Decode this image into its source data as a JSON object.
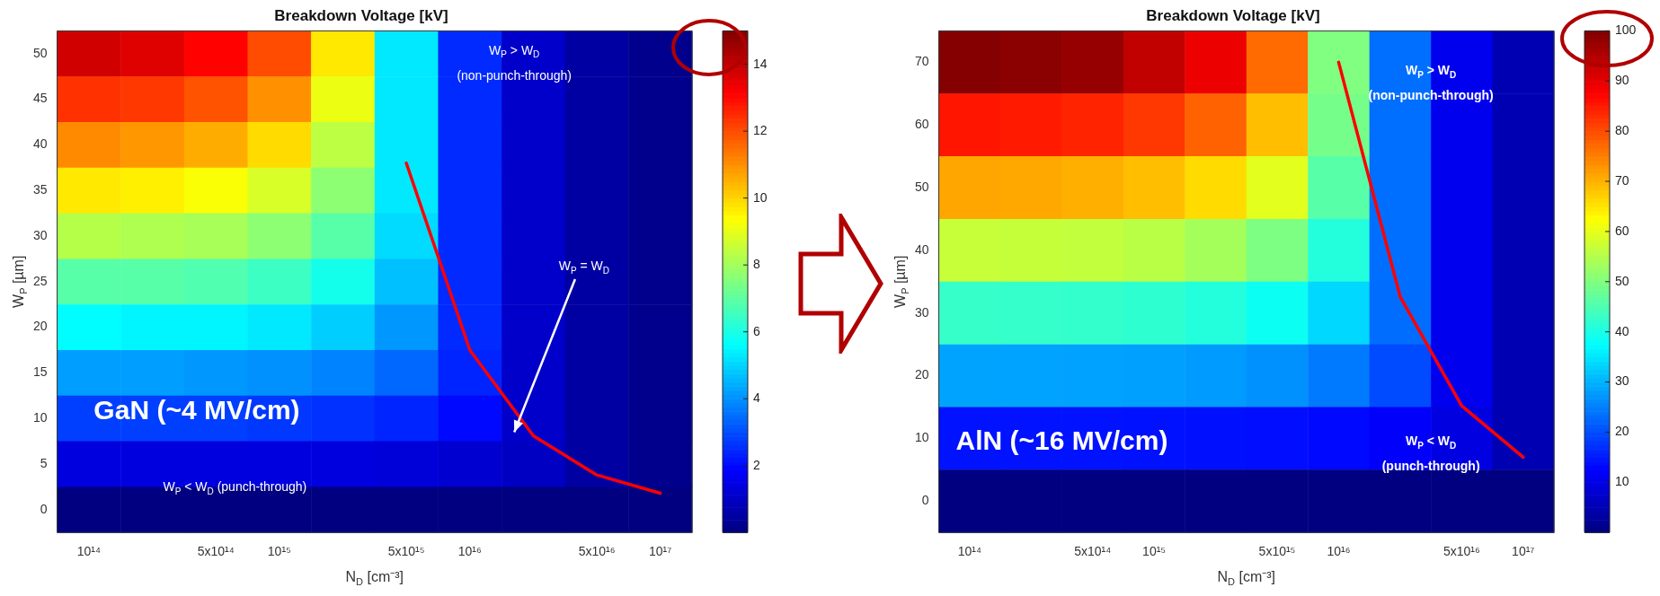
{
  "chart_data": [
    {
      "type": "heatmap",
      "title": "Breakdown Voltage [kV]",
      "xlabel": "N$_{D}$ [cm⁻³]",
      "ylabel": "W$_{P}$ [µm]",
      "categories": [
        "10¹⁴",
        null,
        "5x10¹⁴",
        "10¹⁵",
        null,
        "5x10¹⁵",
        "10¹⁶",
        null,
        "5x10¹⁶",
        "10¹⁷"
      ],
      "ylim": [
        -2.5,
        52.5
      ],
      "yticks": [
        0,
        5,
        10,
        15,
        20,
        25,
        30,
        35,
        40,
        45,
        50
      ],
      "cells": [
        [
          13.8,
          13.6,
          13.1,
          12.0,
          9.7,
          5.3,
          2.5,
          1.1,
          0.5,
          0.2
        ],
        [
          12.4,
          12.3,
          11.9,
          11.0,
          9.1,
          5.3,
          2.5,
          1.1,
          0.5,
          0.2
        ],
        [
          11.1,
          10.9,
          10.6,
          9.9,
          8.4,
          5.3,
          2.5,
          1.1,
          0.5,
          0.2
        ],
        [
          9.7,
          9.6,
          9.3,
          8.8,
          7.7,
          5.3,
          2.5,
          1.1,
          0.5,
          0.2
        ],
        [
          8.3,
          8.2,
          8.1,
          7.7,
          6.9,
          5.1,
          2.5,
          1.1,
          0.5,
          0.2
        ],
        [
          6.9,
          6.9,
          6.8,
          6.5,
          5.9,
          4.7,
          2.5,
          1.1,
          0.5,
          0.2
        ],
        [
          5.6,
          5.5,
          5.5,
          5.3,
          4.9,
          4.1,
          2.5,
          1.1,
          0.5,
          0.2
        ],
        [
          4.2,
          4.2,
          4.1,
          4.0,
          3.8,
          3.4,
          2.4,
          1.1,
          0.5,
          0.2
        ],
        [
          2.8,
          2.8,
          2.8,
          2.7,
          2.6,
          2.4,
          2.0,
          1.1,
          0.5,
          0.2
        ],
        [
          1.4,
          1.4,
          1.4,
          1.4,
          1.4,
          1.3,
          1.2,
          1.0,
          0.5,
          0.2
        ],
        [
          0,
          0,
          0,
          0,
          0,
          0,
          0,
          0,
          0,
          0
        ]
      ],
      "clim": [
        0,
        15
      ],
      "cticks": [
        2,
        4,
        6,
        8,
        10,
        12,
        14
      ],
      "series": [
        {
          "type": "line",
          "color": "#ff0000",
          "values": [
            null,
            null,
            null,
            null,
            null,
            38,
            17.5,
            8.1,
            3.8,
            1.8
          ]
        }
      ],
      "annotations": [
        "W$_{P}$ > W$_{D}$",
        "(non-punch-through)",
        "W$_{P}$ = W$_{D}$",
        "W$_{P}$ < W$_{D}$ (punch-through)",
        "GaN (~4 MV/cm)"
      ]
    },
    {
      "type": "heatmap",
      "title": "Breakdown Voltage [kV]",
      "xlabel": "N$_{D}$ [cm⁻³]",
      "ylabel": "W$_{P}$ [µm]",
      "categories": [
        "10¹⁴",
        null,
        "5x10¹⁴",
        "10¹⁵",
        null,
        "5x10¹⁵",
        "10¹⁶",
        null,
        "5x10¹⁶",
        "10¹⁷"
      ],
      "ylim": [
        -5,
        75
      ],
      "yticks": [
        0,
        10,
        20,
        30,
        40,
        50,
        60,
        70
      ],
      "cells": [
        [
          99.5,
          98.9,
          97.7,
          93.6,
          89.3,
          77.0,
          50.0,
          23.3,
          10.9,
          5.0
        ],
        [
          85.4,
          85.0,
          84.1,
          82.1,
          77.9,
          68.9,
          49.0,
          23.3,
          10.9,
          5.0
        ],
        [
          71.2,
          71.0,
          70.3,
          68.9,
          66.0,
          59.7,
          46.0,
          23.3,
          10.9,
          5.0
        ],
        [
          57.0,
          56.8,
          56.5,
          55.6,
          53.7,
          49.7,
          40.9,
          23.3,
          10.9,
          5.0
        ],
        [
          42.8,
          42.7,
          42.5,
          42.0,
          40.9,
          38.7,
          33.7,
          23.2,
          10.9,
          5.0
        ],
        [
          28.6,
          28.5,
          28.4,
          28.2,
          27.7,
          26.7,
          24.5,
          19.8,
          10.9,
          5.0
        ],
        [
          14.3,
          14.3,
          14.3,
          14.2,
          14.1,
          13.8,
          13.3,
          12.1,
          9.6,
          5.0
        ],
        [
          0,
          0,
          0,
          0,
          0,
          0,
          0,
          0,
          0,
          0
        ]
      ],
      "clim": [
        0,
        100
      ],
      "cticks": [
        10,
        20,
        30,
        40,
        50,
        60,
        70,
        80,
        90,
        100
      ],
      "series": [
        {
          "type": "line",
          "color": "#ff0000",
          "values": [
            null,
            null,
            null,
            null,
            null,
            null,
            70,
            32.6,
            15.2,
            7
          ]
        }
      ],
      "annotations": [
        "W$_{P}$ > W$_{D}$",
        "(non-punch-through)",
        "W$_{P}$ < W$_{D}$",
        "(punch-through)",
        "AlN (~16 MV/cm)"
      ]
    }
  ]
}
